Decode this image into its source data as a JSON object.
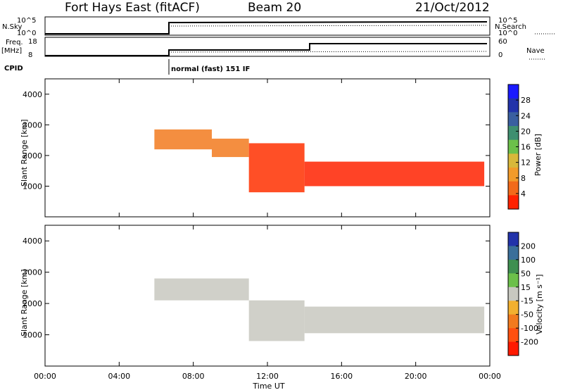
{
  "header": {
    "station": "Fort Hays East (fitACF)",
    "beam": "Beam 20",
    "date": "21/Oct/2012"
  },
  "top_panels": {
    "nsky_label": "N.Sky",
    "nsky_ticks": [
      "10^5",
      "10^0"
    ],
    "nsearch_label": "N.Search",
    "nsearch_ticks": [
      "10^5",
      "10^0"
    ],
    "freq_label_1": "Freq.",
    "freq_label_2": "[MHz]",
    "freq_ticks": [
      "18",
      "8"
    ],
    "nave_label": "Nave",
    "nave_ticks": [
      "60",
      "0"
    ],
    "cpid_label": "CPID",
    "cpid_text": "normal (fast) 151 IF"
  },
  "chart_data": [
    {
      "type": "heatmap",
      "name": "power",
      "ylabel": "Slant Range [km]",
      "xlabel": "",
      "ylim": [
        0,
        4500
      ],
      "yticks": [
        1000,
        2000,
        3000,
        4000
      ],
      "colorbar_label": "Power [dB]",
      "colorbar_ticks": [
        "4",
        "8",
        "12",
        "16",
        "20",
        "24",
        "28"
      ],
      "colorbar_colors": [
        "#1a1aff",
        "#2233aa",
        "#3a5fa0",
        "#3f8f70",
        "#6cc04a",
        "#d8b83a",
        "#f29b2a",
        "#f26a1a",
        "#ff2200"
      ],
      "echo_bands": [
        {
          "x_start_h": 5.9,
          "x_end_h": 9.0,
          "y_top_km": 2850,
          "y_bot_km": 2200,
          "color": "#f27a1e"
        },
        {
          "x_start_h": 9.0,
          "x_end_h": 11.0,
          "y_top_km": 2550,
          "y_bot_km": 1950,
          "color": "#f27a1e"
        },
        {
          "x_start_h": 11.0,
          "x_end_h": 14.0,
          "y_top_km": 2400,
          "y_bot_km": 800,
          "color": "#ff3000"
        },
        {
          "x_start_h": 14.0,
          "x_end_h": 23.7,
          "y_top_km": 1800,
          "y_bot_km": 1000,
          "color": "#ff2200"
        }
      ]
    },
    {
      "type": "heatmap",
      "name": "velocity",
      "ylabel": "Slant Range [km]",
      "xlabel": "Time UT",
      "ylim": [
        0,
        4500
      ],
      "yticks": [
        1000,
        2000,
        3000,
        4000
      ],
      "xticks": [
        "00:00",
        "04:00",
        "08:00",
        "12:00",
        "16:00",
        "20:00",
        "00:00"
      ],
      "colorbar_label": "Velocity [m s⁻¹]",
      "colorbar_ticks": [
        "200",
        "100",
        "50",
        "15",
        "-15",
        "-50",
        "-100",
        "-200"
      ],
      "colorbar_colors": [
        "#2233aa",
        "#3a6f9a",
        "#3f8f50",
        "#6cc04a",
        "#c8c8c0",
        "#f2b030",
        "#f27a1e",
        "#ff5010",
        "#ff1a00"
      ],
      "echo_bands": [
        {
          "x_start_h": 5.9,
          "x_end_h": 11.0,
          "y_top_km": 2800,
          "y_bot_km": 2100,
          "color": "#c8c8c0"
        },
        {
          "x_start_h": 11.0,
          "x_end_h": 14.0,
          "y_top_km": 2100,
          "y_bot_km": 800,
          "color": "#c8c8c0"
        },
        {
          "x_start_h": 14.0,
          "x_end_h": 23.7,
          "y_top_km": 1900,
          "y_bot_km": 1050,
          "color": "#c8c8c0"
        }
      ]
    }
  ]
}
